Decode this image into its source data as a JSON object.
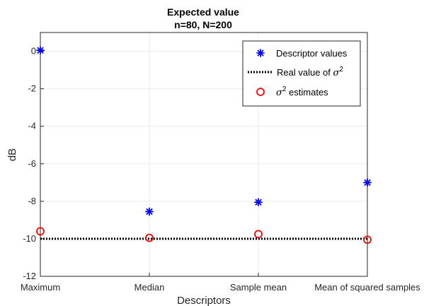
{
  "chart_data": {
    "type": "scatter",
    "title": [
      "Expected value",
      "n=80, N=200"
    ],
    "xlabel": "Descriptors",
    "ylabel": "dB",
    "categories": [
      "Maximum",
      "Median",
      "Sample mean",
      "Mean of squared samples"
    ],
    "ylim": [
      -12,
      1
    ],
    "yticks": [
      0,
      -2,
      -4,
      -6,
      -8,
      -10,
      -12
    ],
    "grid": true,
    "legend_position": "top-right",
    "series": [
      {
        "name": "Descriptor values",
        "marker": "asterisk",
        "color": "#0000ff",
        "values": [
          0.05,
          -8.55,
          -8.05,
          -7.0
        ]
      },
      {
        "name": "Real value of σ²",
        "marker": "dotted-line",
        "color": "#000000",
        "values": [
          -10,
          -10,
          -10,
          -10
        ]
      },
      {
        "name": "σ² estimates",
        "marker": "circle",
        "color": "#ff0000",
        "values": [
          -9.6,
          -9.95,
          -9.75,
          -10.05
        ]
      }
    ],
    "legend": {
      "entries": [
        {
          "series": 0,
          "label": "Descriptor values",
          "sup": ""
        },
        {
          "series": 1,
          "label": "Real value of ",
          "sym": "σ",
          "sup": "2"
        },
        {
          "series": 2,
          "label": "",
          "sym": "σ",
          "sup": "2",
          "suffix": " estimates"
        }
      ]
    }
  }
}
